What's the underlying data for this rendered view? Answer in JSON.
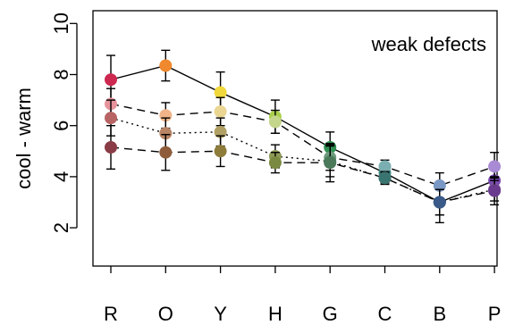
{
  "chart_data": {
    "type": "line",
    "title": "",
    "annotation": "weak defects",
    "xlabel": "",
    "ylabel": "cool - warm",
    "categories": [
      "R",
      "O",
      "Y",
      "H",
      "G",
      "C",
      "B",
      "P"
    ],
    "ylim": [
      0.5,
      10.5
    ],
    "yticks": [
      2,
      4,
      6,
      8,
      10
    ],
    "grid": false,
    "series": [
      {
        "line_style": "solid",
        "values": [
          7.8,
          8.35,
          7.3,
          6.35,
          5.15,
          4.15,
          3.0,
          3.85
        ],
        "error": [
          0.95,
          0.6,
          0.8,
          0.65,
          0.6,
          0.25,
          0.8,
          0.45
        ],
        "point_colors": [
          "#cc2850",
          "#f0882d",
          "#f0d83c",
          "#a9cf4a",
          "#2f8f52",
          "#3d8a86",
          "#3f66a0",
          "#7a49b0"
        ]
      },
      {
        "line_style": "dashed",
        "values": [
          6.85,
          6.4,
          6.55,
          6.15,
          4.75,
          4.4,
          3.65,
          4.4
        ],
        "error": [
          0.6,
          0.5,
          0.55,
          0.45,
          0.5,
          0.25,
          0.5,
          0.55
        ],
        "point_colors": [
          "#e6949c",
          "#f0b488",
          "#ead592",
          "#c4d58c",
          "#6f9c7e",
          "#7aaeb0",
          "#7a98c4",
          "#a98ad4"
        ]
      },
      {
        "line_style": "dotted",
        "values": [
          6.3,
          5.7,
          5.75,
          4.8,
          4.6,
          3.95,
          3.0,
          3.5
        ],
        "error": [
          0.7,
          0.6,
          0.55,
          0.45,
          0.6,
          0.2,
          0.5,
          0.45
        ],
        "point_colors": [
          "#b86464",
          "#b88464",
          "#b0a063",
          "#8c9a56",
          "#5b8a69",
          "#4f8480",
          "#4f6f96",
          "#7a5596"
        ]
      },
      {
        "line_style": "dashed",
        "values": [
          5.15,
          4.95,
          5.0,
          4.55,
          4.55,
          3.95,
          3.0,
          3.45
        ],
        "error": [
          0.85,
          0.7,
          0.6,
          0.4,
          0.75,
          0.25,
          0.5,
          0.55
        ],
        "point_colors": [
          "#8a3c46",
          "#8e5c3a",
          "#8e7c3a",
          "#7a8a40",
          "#4a7a5a",
          "#3a7470",
          "#3a5a8a",
          "#6a3a8e"
        ]
      }
    ]
  }
}
